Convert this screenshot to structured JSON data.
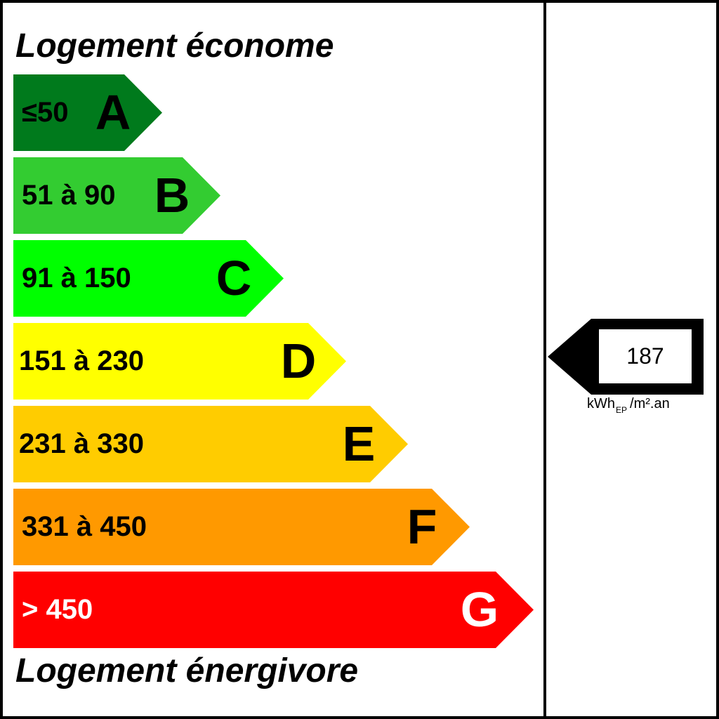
{
  "label": {
    "title_top": "Logement économe",
    "title_bottom": "Logement énergivore",
    "bands": [
      {
        "range": "≤50",
        "letter": "A",
        "color": "#007a1c",
        "text_color": "#000000"
      },
      {
        "range": "51 à 90",
        "letter": "B",
        "color": "#33cc31",
        "text_color": "#000000"
      },
      {
        "range": "91 à 150",
        "letter": "C",
        "color": "#00ff00",
        "text_color": "#000000"
      },
      {
        "range": "151 à 230",
        "letter": "D",
        "color": "#ffff00",
        "text_color": "#000000"
      },
      {
        "range": "231 à 330",
        "letter": "E",
        "color": "#ffcc00",
        "text_color": "#000000"
      },
      {
        "range": "331 à 450",
        "letter": "F",
        "color": "#ff9900",
        "text_color": "#000000"
      },
      {
        "range": "> 450",
        "letter": "G",
        "color": "#ff0000",
        "text_color": "#ffffff"
      }
    ]
  },
  "indicator": {
    "value": "187",
    "unit_main": "kWh",
    "unit_sub": "EP",
    "unit_tail": "/m².an"
  }
}
